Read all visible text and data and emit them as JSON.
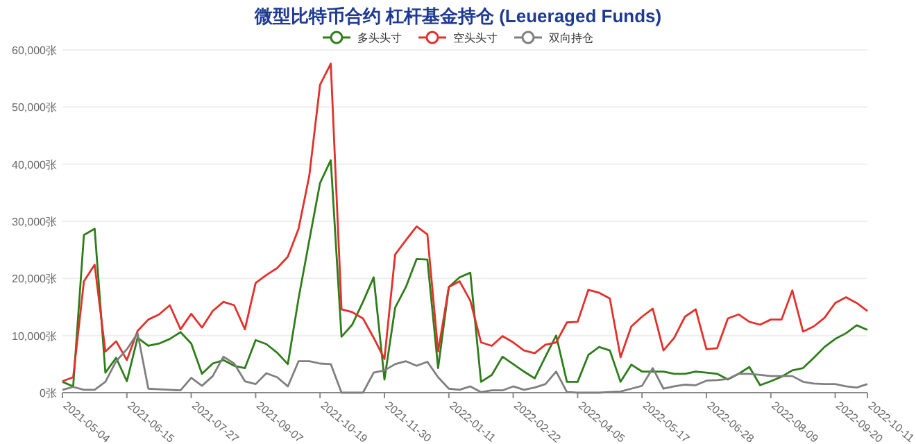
{
  "chart_data": {
    "type": "line",
    "title": "微型比特币合约 杠杆基金持仓 (Leueraged Funds)",
    "categories": [
      "2021-05-04",
      null,
      null,
      null,
      null,
      null,
      "2021-06-15",
      null,
      null,
      null,
      null,
      null,
      "2021-07-27",
      null,
      null,
      null,
      null,
      null,
      "2021-09-07",
      null,
      null,
      null,
      null,
      null,
      "2021-10-19",
      null,
      null,
      null,
      null,
      null,
      "2021-11-30",
      null,
      null,
      null,
      null,
      null,
      "2022-01-11",
      null,
      null,
      null,
      null,
      null,
      "2022-02-22",
      null,
      null,
      null,
      null,
      null,
      "2022-04-05",
      null,
      null,
      null,
      null,
      null,
      "2022-05-17",
      null,
      null,
      null,
      null,
      null,
      "2022-06-28",
      null,
      null,
      null,
      null,
      null,
      "2022-08-09",
      null,
      null,
      null,
      null,
      null,
      "2022-09-20",
      null,
      null,
      "2022-10-11"
    ],
    "series": [
      {
        "name": "多头头寸",
        "color": "#2e7d1a",
        "values": [
          1900,
          1100,
          27600,
          28700,
          3500,
          6100,
          2000,
          9600,
          8200,
          8600,
          9400,
          10600,
          8600,
          3300,
          5100,
          5700,
          4700,
          4300,
          9200,
          8500,
          7000,
          5000,
          16500,
          26700,
          36700,
          40700,
          9800,
          11900,
          15900,
          20200,
          2300,
          14900,
          18500,
          23400,
          23300,
          4300,
          18500,
          20200,
          21000,
          1900,
          3100,
          6300,
          5000,
          3700,
          2500,
          6300,
          10000,
          1900,
          1900,
          6600,
          8000,
          7400,
          1900,
          4900,
          3700,
          3700,
          3700,
          3300,
          3300,
          3700,
          3500,
          3300,
          2300,
          3300,
          4500,
          1300,
          2000,
          2800,
          3900,
          4300,
          6100,
          8000,
          9400,
          10400,
          11800,
          11000
        ]
      },
      {
        "name": "空头头寸",
        "color": "#e3302b",
        "values": [
          2000,
          2700,
          19500,
          22400,
          7200,
          9000,
          5700,
          10800,
          12800,
          13700,
          15300,
          11100,
          13800,
          11400,
          14300,
          15900,
          15300,
          11100,
          19200,
          20600,
          21800,
          23800,
          28700,
          38000,
          53900,
          57600,
          14600,
          14100,
          13000,
          9600,
          5900,
          24200,
          26700,
          29100,
          27700,
          7200,
          18500,
          19500,
          16100,
          8800,
          8200,
          9900,
          8800,
          7400,
          6900,
          8400,
          8800,
          12300,
          12400,
          18000,
          17500,
          16500,
          6200,
          11600,
          13300,
          14700,
          7400,
          9600,
          13300,
          14600,
          7600,
          7800,
          13000,
          13700,
          12400,
          11900,
          12800,
          12800,
          17900,
          10700,
          11600,
          13100,
          15700,
          16700,
          15700,
          14300
        ]
      },
      {
        "name": "双向持仓",
        "color": "#7f7f7f",
        "values": [
          500,
          1000,
          500,
          500,
          1900,
          5500,
          7600,
          10400,
          700,
          600,
          500,
          400,
          2600,
          1200,
          2900,
          6300,
          5100,
          2000,
          1500,
          3400,
          2700,
          1100,
          5500,
          5500,
          5100,
          5000,
          0,
          0,
          0,
          3500,
          3900,
          5000,
          5500,
          4700,
          5400,
          2700,
          700,
          500,
          1100,
          100,
          400,
          400,
          1100,
          500,
          900,
          1500,
          3700,
          100,
          0,
          0,
          0,
          100,
          200,
          700,
          1200,
          4300,
          700,
          1100,
          1400,
          1300,
          2100,
          2200,
          2400,
          3300,
          3300,
          3100,
          2900,
          2900,
          2900,
          1900,
          1600,
          1500,
          1500,
          1100,
          900,
          1500
        ]
      }
    ],
    "ylim": [
      0,
      60000
    ],
    "yticks": [
      {
        "value": 0,
        "label": "0张"
      },
      {
        "value": 10000,
        "label": "10,000张"
      },
      {
        "value": 20000,
        "label": "20,000张"
      },
      {
        "value": 30000,
        "label": "30,000张"
      },
      {
        "value": 40000,
        "label": "40,000张"
      },
      {
        "value": 50000,
        "label": "50,000张"
      },
      {
        "value": 60000,
        "label": "60,000张"
      }
    ],
    "grid": "y",
    "legend": "top",
    "line_style": "solid"
  }
}
